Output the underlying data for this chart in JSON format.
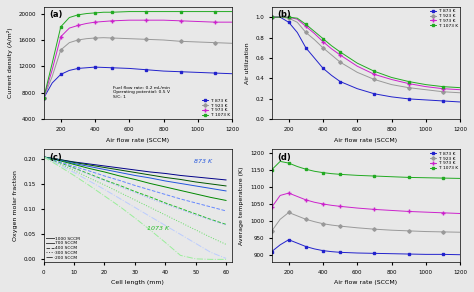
{
  "fig_bg": "#e8e8e8",
  "panel_bg": "#e8e8e8",
  "air_flow_rates": [
    100,
    150,
    200,
    250,
    300,
    350,
    400,
    450,
    500,
    600,
    700,
    800,
    900,
    1000,
    1100,
    1200
  ],
  "panel_a": {
    "label": "(a)",
    "ylabel": "Current density (A/m²)",
    "xlabel": "Air flow rate (SCCM)",
    "ylim": [
      4000,
      21000
    ],
    "yticks": [
      4000,
      8000,
      12000,
      16000,
      20000
    ],
    "annotation": "Fuel flow rate: 0.2 mL/min\nOperating potential: 0.5 V\nS/C: 1",
    "curves": {
      "873K": [
        7200,
        9500,
        10800,
        11400,
        11700,
        11800,
        11900,
        11850,
        11800,
        11700,
        11500,
        11300,
        11200,
        11100,
        11000,
        10900
      ],
      "923K": [
        7200,
        10500,
        14500,
        15600,
        16000,
        16200,
        16300,
        16350,
        16300,
        16200,
        16100,
        16000,
        15800,
        15700,
        15600,
        15500
      ],
      "973K": [
        7200,
        11500,
        16500,
        17800,
        18200,
        18500,
        18700,
        18800,
        18900,
        19000,
        19000,
        19000,
        18900,
        18800,
        18700,
        18700
      ],
      "1073K": [
        7200,
        12500,
        18000,
        19400,
        19800,
        20000,
        20100,
        20200,
        20200,
        20300,
        20300,
        20300,
        20300,
        20300,
        20300,
        20300
      ]
    },
    "colors": {
      "873K": "#2222cc",
      "923K": "#999999",
      "973K": "#cc22cc",
      "1073K": "#22aa22"
    },
    "markers": {
      "873K": "s",
      "923K": "D",
      "973K": "+",
      "1073K": "s"
    },
    "markersizes": {
      "873K": 2.0,
      "923K": 1.8,
      "973K": 3.0,
      "1073K": 2.0
    },
    "legend_labels": {
      "873K": "T: 873 K",
      "923K": "T: 923 K",
      "973K": "T: 973 K",
      "1073K": "T: 1073 K"
    }
  },
  "panel_b": {
    "label": "(b)",
    "ylabel": "Air utilization",
    "xlabel": "Air flow rate (SCCM)",
    "ylim": [
      0.0,
      1.1
    ],
    "yticks": [
      0.0,
      0.2,
      0.4,
      0.6,
      0.8,
      1.0
    ],
    "curves": {
      "873K": [
        1.0,
        1.0,
        0.95,
        0.85,
        0.7,
        0.6,
        0.5,
        0.43,
        0.37,
        0.3,
        0.25,
        0.22,
        0.2,
        0.19,
        0.18,
        0.17
      ],
      "923K": [
        1.0,
        1.0,
        0.99,
        0.95,
        0.85,
        0.78,
        0.7,
        0.63,
        0.56,
        0.46,
        0.39,
        0.34,
        0.31,
        0.29,
        0.27,
        0.26
      ],
      "973K": [
        1.0,
        1.0,
        1.0,
        0.98,
        0.91,
        0.84,
        0.76,
        0.69,
        0.63,
        0.52,
        0.44,
        0.39,
        0.35,
        0.32,
        0.3,
        0.29
      ],
      "1073K": [
        1.0,
        1.0,
        1.0,
        0.99,
        0.93,
        0.86,
        0.79,
        0.72,
        0.66,
        0.55,
        0.47,
        0.41,
        0.37,
        0.34,
        0.32,
        0.31
      ]
    },
    "colors": {
      "873K": "#2222cc",
      "923K": "#999999",
      "973K": "#cc22cc",
      "1073K": "#22aa22"
    },
    "markers": {
      "873K": "s",
      "923K": "D",
      "973K": "+",
      "1073K": "s"
    },
    "markersizes": {
      "873K": 2.0,
      "923K": 1.8,
      "973K": 3.0,
      "1073K": 2.0
    },
    "legend_labels": {
      "873K": "T: 873 K",
      "923K": "T: 923 K",
      "973K": "T: 973 K",
      "1073K": "T: 1073 K"
    }
  },
  "panel_c": {
    "label": "(c)",
    "ylabel": "Oxygen molar fraction",
    "xlabel": "Cell length (mm)",
    "xlim": [
      0,
      62
    ],
    "ylim": [
      -0.005,
      0.22
    ],
    "yticks": [
      0.0,
      0.05,
      0.1,
      0.15,
      0.2
    ],
    "x": [
      0,
      5,
      10,
      15,
      20,
      25,
      30,
      35,
      40,
      45,
      50,
      55,
      60
    ],
    "curves_873": {
      "1000": [
        0.205,
        0.2,
        0.195,
        0.191,
        0.187,
        0.183,
        0.179,
        0.175,
        0.172,
        0.168,
        0.165,
        0.162,
        0.159
      ],
      "700": [
        0.205,
        0.199,
        0.192,
        0.186,
        0.18,
        0.174,
        0.168,
        0.163,
        0.157,
        0.152,
        0.147,
        0.142,
        0.137
      ],
      "400": [
        0.205,
        0.196,
        0.186,
        0.177,
        0.167,
        0.158,
        0.148,
        0.139,
        0.13,
        0.121,
        0.113,
        0.105,
        0.097
      ],
      "300": [
        0.205,
        0.194,
        0.182,
        0.17,
        0.158,
        0.146,
        0.134,
        0.122,
        0.111,
        0.1,
        0.089,
        0.079,
        0.069
      ],
      "200": [
        0.205,
        0.19,
        0.174,
        0.157,
        0.14,
        0.122,
        0.104,
        0.086,
        0.068,
        0.05,
        0.032,
        0.014,
        0.002
      ]
    },
    "curves_1073": {
      "1000": [
        0.205,
        0.2,
        0.194,
        0.189,
        0.184,
        0.179,
        0.174,
        0.169,
        0.164,
        0.16,
        0.155,
        0.151,
        0.147
      ],
      "700": [
        0.205,
        0.198,
        0.19,
        0.182,
        0.175,
        0.167,
        0.16,
        0.152,
        0.145,
        0.138,
        0.131,
        0.124,
        0.118
      ],
      "400": [
        0.205,
        0.194,
        0.183,
        0.171,
        0.159,
        0.148,
        0.136,
        0.125,
        0.113,
        0.102,
        0.091,
        0.08,
        0.07
      ],
      "300": [
        0.205,
        0.192,
        0.178,
        0.163,
        0.149,
        0.134,
        0.119,
        0.104,
        0.089,
        0.074,
        0.059,
        0.044,
        0.03
      ],
      "200": [
        0.205,
        0.187,
        0.168,
        0.148,
        0.127,
        0.106,
        0.083,
        0.059,
        0.034,
        0.008,
        0.001,
        0.0,
        0.0
      ]
    },
    "colors_873": {
      "1000": "#000088",
      "700": "#2255dd",
      "400": "#6688ff",
      "300": "#99aaff",
      "200": "#bbccff"
    },
    "colors_1073": {
      "1000": "#005500",
      "700": "#008800",
      "400": "#22bb22",
      "300": "#66dd66",
      "200": "#99ee99"
    },
    "linestyles": {
      "1000": "-",
      "700": "-",
      "400": "--",
      "300": ":",
      "200": "-."
    },
    "legend_labels": {
      "1000": "1000 SCCM",
      "700": "700 SCCM",
      "400": "400 SCCM",
      "300": "300 SCCM",
      "200": "200 SCCM"
    }
  },
  "panel_d": {
    "label": "(d)",
    "ylabel": "Average temperature (K)",
    "xlabel": "Air flow rate (SCCM)",
    "ylim": [
      880,
      1210
    ],
    "yticks": [
      900,
      950,
      1000,
      1050,
      1100,
      1150,
      1200
    ],
    "curves": {
      "873K": [
        910,
        930,
        945,
        935,
        925,
        918,
        913,
        910,
        908,
        906,
        905,
        904,
        903,
        902,
        902,
        901
      ],
      "923K": [
        970,
        1005,
        1025,
        1015,
        1005,
        998,
        992,
        988,
        985,
        980,
        976,
        973,
        971,
        969,
        968,
        967
      ],
      "973K": [
        1040,
        1075,
        1082,
        1072,
        1062,
        1055,
        1050,
        1046,
        1043,
        1038,
        1034,
        1031,
        1028,
        1026,
        1024,
        1022
      ],
      "1073K": [
        1150,
        1175,
        1170,
        1160,
        1152,
        1146,
        1142,
        1139,
        1137,
        1134,
        1132,
        1130,
        1128,
        1127,
        1126,
        1125
      ]
    },
    "colors": {
      "873K": "#2222cc",
      "923K": "#999999",
      "973K": "#cc22cc",
      "1073K": "#22aa22"
    },
    "markers": {
      "873K": "s",
      "923K": "D",
      "973K": "+",
      "1073K": "s"
    },
    "markersizes": {
      "873K": 2.0,
      "923K": 1.8,
      "973K": 3.0,
      "1073K": 2.0
    },
    "legend_labels": {
      "873K": "T: 873 K",
      "923K": "T: 923 K",
      "973K": "T: 973 K",
      "1073K": "T: 1073 K"
    }
  }
}
